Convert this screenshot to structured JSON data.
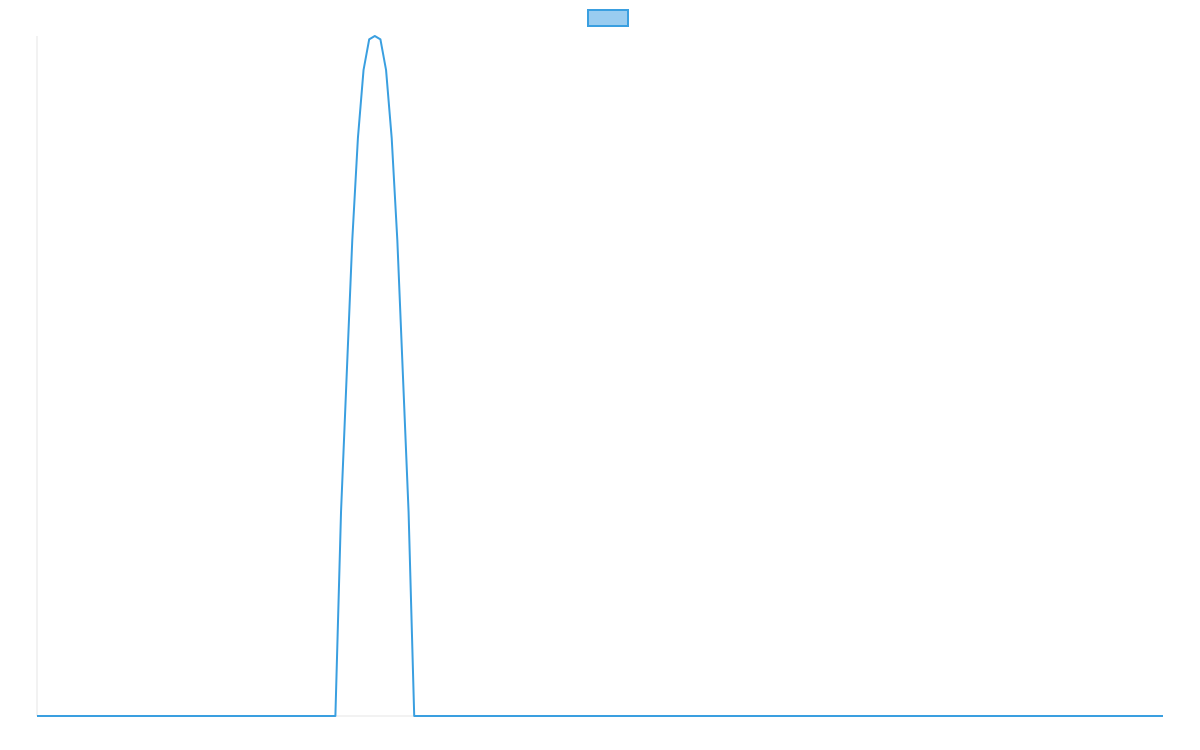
{
  "chart_data": {
    "type": "line",
    "title": "",
    "xlabel": "",
    "ylabel": "",
    "xlim": [
      0,
      100
    ],
    "ylim": [
      0,
      1
    ],
    "grid": false,
    "legend": {
      "position": "top-center",
      "entries": [
        {
          "name": "",
          "color": "#3a9fe0",
          "fill": "#99ccf0"
        }
      ]
    },
    "series": [
      {
        "color": "#3a9fe0",
        "x": [
          0,
          25.5,
          26.0,
          26.5,
          27.0,
          27.5,
          28.0,
          28.5,
          29.0,
          29.5,
          30.0,
          30.5,
          31.0,
          31.5,
          32.0,
          32.5,
          33.0,
          33.5,
          34.0,
          34.5,
          35.0,
          35.5,
          100
        ],
        "y": [
          0,
          0,
          0.0,
          0.0,
          0.3,
          0.5,
          0.7,
          0.85,
          0.95,
          0.995,
          1.0,
          0.995,
          0.95,
          0.85,
          0.7,
          0.5,
          0.3,
          0.0,
          0.0,
          0.0,
          0.0,
          0,
          0
        ]
      }
    ]
  }
}
